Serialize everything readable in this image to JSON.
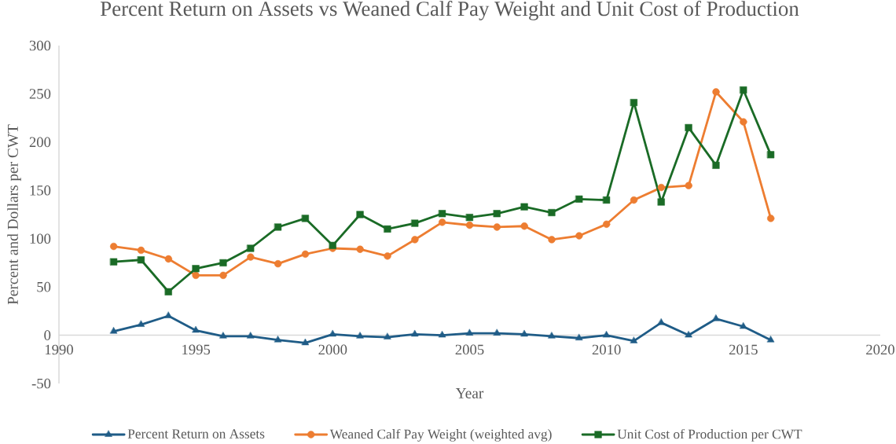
{
  "chart_data": {
    "type": "line",
    "title": "Percent Return on Assets vs Weaned Calf Pay Weight and Unit Cost of Production",
    "xlabel": "Year",
    "ylabel": "Percent and Dollars per CWT",
    "x": [
      1992,
      1993,
      1994,
      1995,
      1996,
      1997,
      1998,
      1999,
      2000,
      2001,
      2002,
      2003,
      2004,
      2005,
      2006,
      2007,
      2008,
      2009,
      2010,
      2011,
      2012,
      2013,
      2014,
      2015,
      2016
    ],
    "xlim": [
      1990,
      2020
    ],
    "xticks": [
      1990,
      1995,
      2000,
      2005,
      2010,
      2015,
      2020
    ],
    "ylim": [
      -50,
      300
    ],
    "yticks": [
      -50,
      0,
      50,
      100,
      150,
      200,
      250,
      300
    ],
    "legend": "bottom",
    "series": [
      {
        "name": "Percent Return on Assets",
        "color": "#1f5c87",
        "marker": "triangle",
        "values": [
          4,
          11,
          20,
          5,
          -1,
          -1,
          -5,
          -8,
          1,
          -1,
          -2,
          1,
          0,
          2,
          2,
          1,
          -1,
          -3,
          0,
          -6,
          13,
          0,
          17,
          9,
          -5
        ]
      },
      {
        "name": "Weaned Calf Pay Weight (weighted avg)",
        "color": "#ed7d31",
        "marker": "circle",
        "values": [
          92,
          88,
          79,
          62,
          62,
          81,
          74,
          84,
          90,
          89,
          82,
          99,
          117,
          114,
          112,
          113,
          99,
          103,
          115,
          140,
          153,
          155,
          252,
          221,
          121
        ]
      },
      {
        "name": "Unit Cost of Production per CWT",
        "color": "#1a6b26",
        "marker": "square",
        "values": [
          76,
          78,
          45,
          69,
          75,
          90,
          112,
          121,
          93,
          125,
          110,
          116,
          126,
          122,
          126,
          133,
          127,
          141,
          140,
          241,
          138,
          215,
          176,
          254,
          187
        ]
      }
    ]
  }
}
